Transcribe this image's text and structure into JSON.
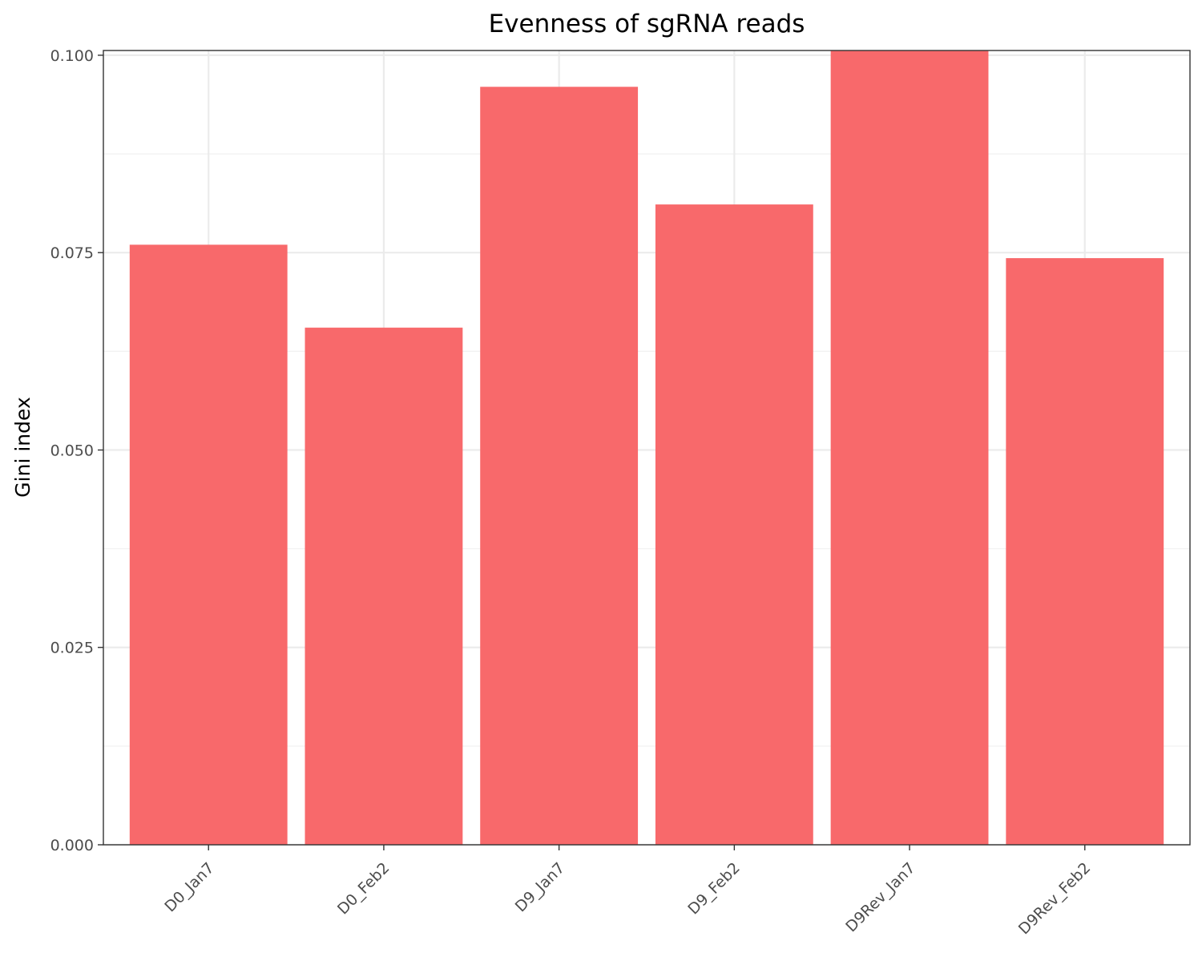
{
  "chart_data": {
    "type": "bar",
    "title": "Evenness of sgRNA reads",
    "xlabel": "",
    "ylabel": "Gini index",
    "categories": [
      "D0_Jan7",
      "D0_Feb2",
      "D9_Jan7",
      "D9_Feb2",
      "D9Rev_Jan7",
      "D9Rev_Feb2"
    ],
    "values": [
      0.076,
      0.0655,
      0.096,
      0.0811,
      0.1006,
      0.0743
    ],
    "ylim": [
      0,
      0.1006
    ],
    "yticks": [
      0.0,
      0.025,
      0.05,
      0.075,
      0.1
    ],
    "ytick_labels": [
      "0.000",
      "0.025",
      "0.050",
      "0.075",
      "0.100"
    ],
    "grid": true,
    "legend": "none",
    "colors": {
      "bar": "#F8696B",
      "panel_border": "#333333",
      "grid_major": "#EBEBEB",
      "grid_minor": "#F2F2F2",
      "tick_text": "#4D4D4D",
      "title_text": "#000000"
    }
  }
}
